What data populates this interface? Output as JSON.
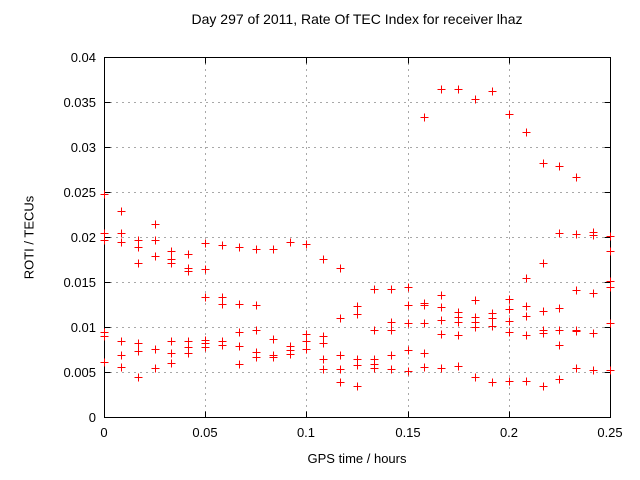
{
  "chart_data": {
    "type": "scatter",
    "title": "Day 297 of 2011, Rate Of TEC Index for receiver lhaz",
    "xlabel": "GPS time / hours",
    "ylabel": "ROTI / TECUs",
    "xlim": [
      0,
      0.25
    ],
    "ylim": [
      0,
      0.04
    ],
    "xticks": {
      "values": [
        0,
        0.05,
        0.1,
        0.15,
        0.2,
        0.25
      ],
      "labels": [
        "0",
        "0.05",
        "0.1",
        "0.15",
        "0.2",
        "0.25"
      ]
    },
    "yticks": {
      "values": [
        0,
        0.005,
        0.01,
        0.015,
        0.02,
        0.025,
        0.03,
        0.035,
        0.04
      ],
      "labels": [
        "0",
        "0.005",
        "0.01",
        "0.015",
        "0.02",
        "0.025",
        "0.03",
        "0.035",
        "0.04"
      ]
    },
    "grid": true,
    "legend": "none",
    "marker": {
      "symbol": "plus",
      "color": "#ff0000",
      "size": 9
    },
    "colors": {
      "background": "#ffffff",
      "axis": "#000000",
      "grid": "#a8a8a8",
      "text": "#000000"
    },
    "series": [
      {
        "name": "ROTI",
        "points": [
          [
            0,
            0.0248
          ],
          [
            0,
            0.0204
          ],
          [
            0,
            0.0197
          ],
          [
            0,
            0.0095
          ],
          [
            0,
            0.009
          ],
          [
            0,
            0.0061
          ],
          [
            0.0083,
            0.0229
          ],
          [
            0.0083,
            0.0204
          ],
          [
            0.0083,
            0.0195
          ],
          [
            0.0083,
            0.0084
          ],
          [
            0.0083,
            0.0069
          ],
          [
            0.0083,
            0.0056
          ],
          [
            0.0167,
            0.0197
          ],
          [
            0.0167,
            0.0189
          ],
          [
            0.0167,
            0.0171
          ],
          [
            0.0167,
            0.0082
          ],
          [
            0.0167,
            0.0073
          ],
          [
            0.0167,
            0.0045
          ],
          [
            0.025,
            0.0215
          ],
          [
            0.025,
            0.0197
          ],
          [
            0.025,
            0.0179
          ],
          [
            0.025,
            0.0076
          ],
          [
            0.025,
            0.0054
          ],
          [
            0.0333,
            0.0184
          ],
          [
            0.0333,
            0.0176
          ],
          [
            0.0333,
            0.0171
          ],
          [
            0.0333,
            0.0084
          ],
          [
            0.0333,
            0.0071
          ],
          [
            0.0333,
            0.006
          ],
          [
            0.0417,
            0.0181
          ],
          [
            0.0417,
            0.0166
          ],
          [
            0.0417,
            0.0162
          ],
          [
            0.0417,
            0.0084
          ],
          [
            0.0417,
            0.0078
          ],
          [
            0.0417,
            0.0071
          ],
          [
            0.05,
            0.0193
          ],
          [
            0.05,
            0.0164
          ],
          [
            0.05,
            0.0133
          ],
          [
            0.05,
            0.0086
          ],
          [
            0.05,
            0.0082
          ],
          [
            0.05,
            0.0078
          ],
          [
            0.0583,
            0.0191
          ],
          [
            0.0583,
            0.0133
          ],
          [
            0.0583,
            0.0126
          ],
          [
            0.0583,
            0.0084
          ],
          [
            0.0583,
            0.008
          ],
          [
            0.0667,
            0.0189
          ],
          [
            0.0667,
            0.0126
          ],
          [
            0.0667,
            0.0095
          ],
          [
            0.0667,
            0.0079
          ],
          [
            0.0667,
            0.0059
          ],
          [
            0.075,
            0.0187
          ],
          [
            0.075,
            0.0125
          ],
          [
            0.075,
            0.0097
          ],
          [
            0.075,
            0.0072
          ],
          [
            0.075,
            0.0067
          ],
          [
            0.0833,
            0.0187
          ],
          [
            0.0833,
            0.0087
          ],
          [
            0.0833,
            0.0069
          ],
          [
            0.0833,
            0.0067
          ],
          [
            0.0917,
            0.0194
          ],
          [
            0.0917,
            0.0079
          ],
          [
            0.0917,
            0.0074
          ],
          [
            0.0917,
            0.007
          ],
          [
            0.1,
            0.0192
          ],
          [
            0.1,
            0.0092
          ],
          [
            0.1,
            0.0085
          ],
          [
            0.1,
            0.0076
          ],
          [
            0.1083,
            0.0176
          ],
          [
            0.1083,
            0.009
          ],
          [
            0.1083,
            0.0082
          ],
          [
            0.1083,
            0.0065
          ],
          [
            0.1083,
            0.0053
          ],
          [
            0.1167,
            0.0166
          ],
          [
            0.1167,
            0.011
          ],
          [
            0.1167,
            0.0069
          ],
          [
            0.1167,
            0.0053
          ],
          [
            0.1167,
            0.0039
          ],
          [
            0.125,
            0.0123
          ],
          [
            0.125,
            0.0115
          ],
          [
            0.125,
            0.0064
          ],
          [
            0.125,
            0.0058
          ],
          [
            0.125,
            0.0034
          ],
          [
            0.1333,
            0.0142
          ],
          [
            0.1333,
            0.0097
          ],
          [
            0.1333,
            0.0064
          ],
          [
            0.1333,
            0.0059
          ],
          [
            0.1333,
            0.0054
          ],
          [
            0.1417,
            0.0142
          ],
          [
            0.1417,
            0.0106
          ],
          [
            0.1417,
            0.0097
          ],
          [
            0.1417,
            0.0069
          ],
          [
            0.1417,
            0.0053
          ],
          [
            0.15,
            0.0144
          ],
          [
            0.15,
            0.0124
          ],
          [
            0.15,
            0.0105
          ],
          [
            0.15,
            0.0075
          ],
          [
            0.15,
            0.0051
          ],
          [
            0.1583,
            0.0333
          ],
          [
            0.1583,
            0.0127
          ],
          [
            0.1583,
            0.0125
          ],
          [
            0.1583,
            0.0104
          ],
          [
            0.1583,
            0.0071
          ],
          [
            0.1583,
            0.0056
          ],
          [
            0.1667,
            0.0364
          ],
          [
            0.1667,
            0.0136
          ],
          [
            0.1667,
            0.0122
          ],
          [
            0.1667,
            0.0108
          ],
          [
            0.1667,
            0.0092
          ],
          [
            0.1667,
            0.0055
          ],
          [
            0.175,
            0.0364
          ],
          [
            0.175,
            0.0117
          ],
          [
            0.175,
            0.0111
          ],
          [
            0.175,
            0.0106
          ],
          [
            0.175,
            0.0091
          ],
          [
            0.175,
            0.0057
          ],
          [
            0.1833,
            0.0353
          ],
          [
            0.1833,
            0.013
          ],
          [
            0.1833,
            0.0111
          ],
          [
            0.1833,
            0.0106
          ],
          [
            0.1833,
            0.01
          ],
          [
            0.1833,
            0.0044
          ],
          [
            0.1917,
            0.0362
          ],
          [
            0.1917,
            0.0116
          ],
          [
            0.1917,
            0.011
          ],
          [
            0.1917,
            0.0101
          ],
          [
            0.1917,
            0.0039
          ],
          [
            0.2,
            0.0337
          ],
          [
            0.2,
            0.0131
          ],
          [
            0.2,
            0.012
          ],
          [
            0.2,
            0.0107
          ],
          [
            0.2,
            0.0095
          ],
          [
            0.2,
            0.004
          ],
          [
            0.2083,
            0.0317
          ],
          [
            0.2083,
            0.0154
          ],
          [
            0.2083,
            0.0123
          ],
          [
            0.2083,
            0.0112
          ],
          [
            0.2083,
            0.0091
          ],
          [
            0.2083,
            0.004
          ],
          [
            0.2167,
            0.0282
          ],
          [
            0.2167,
            0.0171
          ],
          [
            0.2167,
            0.0118
          ],
          [
            0.2167,
            0.0097
          ],
          [
            0.2167,
            0.0093
          ],
          [
            0.2167,
            0.0034
          ],
          [
            0.225,
            0.0279
          ],
          [
            0.225,
            0.0205
          ],
          [
            0.225,
            0.0121
          ],
          [
            0.225,
            0.0097
          ],
          [
            0.225,
            0.008
          ],
          [
            0.225,
            0.0042
          ],
          [
            0.2333,
            0.0267
          ],
          [
            0.2333,
            0.0203
          ],
          [
            0.2333,
            0.0141
          ],
          [
            0.2333,
            0.0097
          ],
          [
            0.2333,
            0.0096
          ],
          [
            0.2333,
            0.0055
          ],
          [
            0.2417,
            0.0206
          ],
          [
            0.2417,
            0.0202
          ],
          [
            0.2417,
            0.0138
          ],
          [
            0.2417,
            0.0093
          ],
          [
            0.2417,
            0.0052
          ],
          [
            0.25,
            0.0201
          ],
          [
            0.25,
            0.0184
          ],
          [
            0.25,
            0.0151
          ],
          [
            0.25,
            0.0144
          ],
          [
            0.25,
            0.0105
          ],
          [
            0.25,
            0.0052
          ]
        ]
      }
    ]
  }
}
